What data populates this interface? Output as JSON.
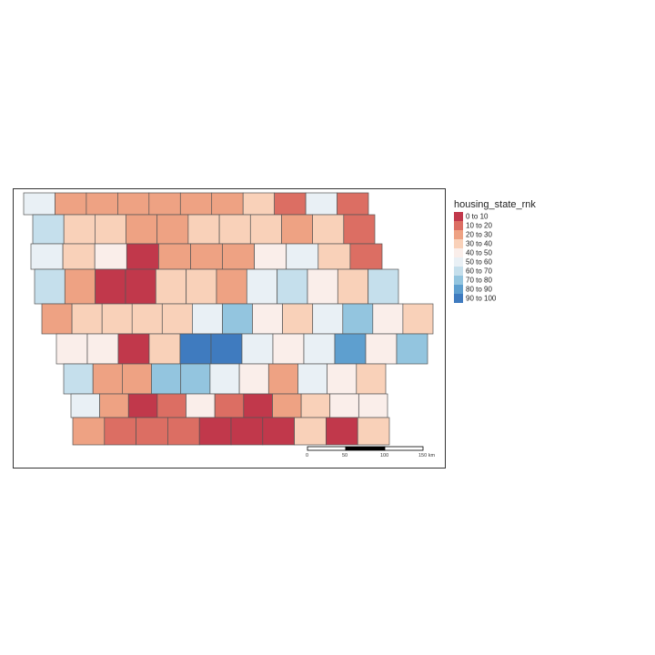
{
  "legend": {
    "title": "housing_state_rnk",
    "entries": [
      {
        "label": "0 to 10",
        "color": "#c1384b"
      },
      {
        "label": "10 to 20",
        "color": "#dc6e63"
      },
      {
        "label": "20 to 30",
        "color": "#eea283"
      },
      {
        "label": "30 to 40",
        "color": "#f9d1b9"
      },
      {
        "label": "40 to 50",
        "color": "#faeeea"
      },
      {
        "label": "50 to 60",
        "color": "#e9f0f5"
      },
      {
        "label": "60 to 70",
        "color": "#c5dfec"
      },
      {
        "label": "70 to 80",
        "color": "#93c5df"
      },
      {
        "label": "80 to 90",
        "color": "#5e9fcf"
      },
      {
        "label": "90 to 100",
        "color": "#3f7bbf"
      }
    ]
  },
  "scale_bar": {
    "ticks": [
      "0",
      "50",
      "100",
      "150 km"
    ]
  },
  "county_rows": [
    [
      6,
      3,
      3,
      3,
      3,
      3,
      3,
      4,
      2,
      6,
      2
    ],
    [
      7,
      4,
      4,
      3,
      3,
      4,
      4,
      4,
      3,
      4,
      2
    ],
    [
      6,
      4,
      5,
      1,
      3,
      3,
      3,
      5,
      6,
      4,
      2
    ],
    [
      7,
      3,
      1,
      1,
      4,
      4,
      3,
      6,
      7,
      5,
      4,
      7
    ],
    [
      3,
      4,
      4,
      4,
      4,
      6,
      8,
      5,
      4,
      6,
      8,
      5,
      4
    ],
    [
      5,
      5,
      1,
      4,
      10,
      10,
      6,
      5,
      6,
      9,
      5,
      8
    ],
    [
      7,
      3,
      3,
      8,
      8,
      6,
      5,
      3,
      6,
      5,
      4
    ],
    [
      6,
      3,
      1,
      2,
      5,
      2,
      1,
      3,
      4,
      5,
      5
    ],
    [
      3,
      2,
      2,
      2,
      1,
      1,
      1,
      4,
      1,
      4
    ]
  ]
}
